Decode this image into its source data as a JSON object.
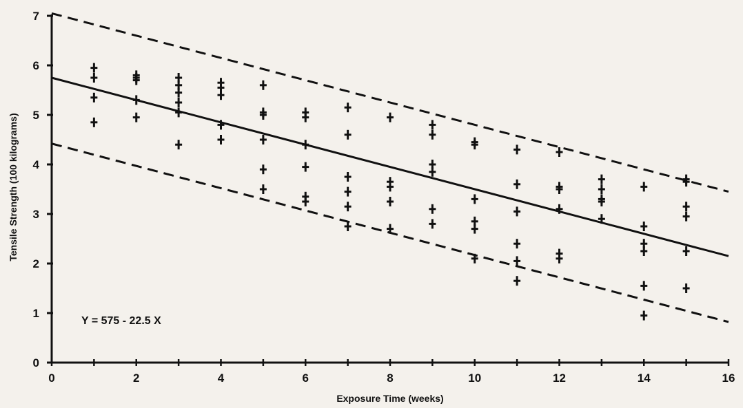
{
  "chart_data": {
    "type": "scatter",
    "xlabel": "Exposure Time (weeks)",
    "ylabel": "Tensile Strength (100 kilograms)",
    "xlim": [
      0,
      16
    ],
    "ylim": [
      0,
      7
    ],
    "xticks": [
      0,
      2,
      4,
      6,
      8,
      10,
      12,
      14,
      16
    ],
    "yticks": [
      0,
      1,
      2,
      3,
      4,
      5,
      6,
      7
    ],
    "grid": false,
    "legend": "none",
    "annotation": "Y = 575 - 22.5 X",
    "marker": "plus",
    "points": [
      [
        1,
        5.95
      ],
      [
        1,
        5.75
      ],
      [
        1,
        5.35
      ],
      [
        1,
        4.85
      ],
      [
        2,
        5.8
      ],
      [
        2,
        5.75
      ],
      [
        2,
        5.7
      ],
      [
        2,
        5.3
      ],
      [
        2,
        4.95
      ],
      [
        3,
        5.75
      ],
      [
        3,
        5.6
      ],
      [
        3,
        5.45
      ],
      [
        3,
        5.25
      ],
      [
        3,
        5.05
      ],
      [
        3,
        4.4
      ],
      [
        4,
        5.65
      ],
      [
        4,
        5.55
      ],
      [
        4,
        5.4
      ],
      [
        4,
        4.8
      ],
      [
        4,
        4.5
      ],
      [
        5,
        5.6
      ],
      [
        5,
        5.05
      ],
      [
        5,
        5.0
      ],
      [
        5,
        4.5
      ],
      [
        5,
        3.9
      ],
      [
        5,
        3.5
      ],
      [
        6,
        5.05
      ],
      [
        6,
        4.95
      ],
      [
        6,
        4.4
      ],
      [
        6,
        3.95
      ],
      [
        6,
        3.35
      ],
      [
        6,
        3.25
      ],
      [
        7,
        5.15
      ],
      [
        7,
        4.6
      ],
      [
        7,
        3.75
      ],
      [
        7,
        3.45
      ],
      [
        7,
        3.15
      ],
      [
        7,
        2.75
      ],
      [
        8,
        4.95
      ],
      [
        8,
        3.65
      ],
      [
        8,
        3.55
      ],
      [
        8,
        3.25
      ],
      [
        8,
        2.7
      ],
      [
        9,
        4.8
      ],
      [
        9,
        4.6
      ],
      [
        9,
        4.0
      ],
      [
        9,
        3.85
      ],
      [
        9,
        3.1
      ],
      [
        9,
        2.8
      ],
      [
        10,
        4.45
      ],
      [
        10,
        4.4
      ],
      [
        10,
        3.3
      ],
      [
        10,
        2.85
      ],
      [
        10,
        2.7
      ],
      [
        10,
        2.1
      ],
      [
        11,
        4.3
      ],
      [
        11,
        3.6
      ],
      [
        11,
        3.05
      ],
      [
        11,
        2.4
      ],
      [
        11,
        2.05
      ],
      [
        11,
        1.65
      ],
      [
        12,
        4.25
      ],
      [
        12,
        3.55
      ],
      [
        12,
        3.5
      ],
      [
        12,
        3.1
      ],
      [
        12,
        2.2
      ],
      [
        12,
        2.1
      ],
      [
        13,
        3.7
      ],
      [
        13,
        3.5
      ],
      [
        13,
        3.3
      ],
      [
        13,
        3.25
      ],
      [
        13,
        2.9
      ],
      [
        14,
        3.55
      ],
      [
        14,
        2.75
      ],
      [
        14,
        2.4
      ],
      [
        14,
        2.25
      ],
      [
        14,
        1.55
      ],
      [
        14,
        0.95
      ],
      [
        15,
        3.7
      ],
      [
        15,
        3.65
      ],
      [
        15,
        3.15
      ],
      [
        15,
        2.95
      ],
      [
        15,
        2.25
      ],
      [
        15,
        1.5
      ]
    ],
    "regression_line": {
      "x": [
        0,
        16
      ],
      "y": [
        5.75,
        2.15
      ]
    },
    "bands": [
      {
        "style": "dashed",
        "x": [
          0,
          16
        ],
        "y": [
          7.05,
          3.45
        ]
      },
      {
        "style": "dashed",
        "x": [
          0,
          16
        ],
        "y": [
          4.42,
          0.82
        ]
      }
    ]
  }
}
